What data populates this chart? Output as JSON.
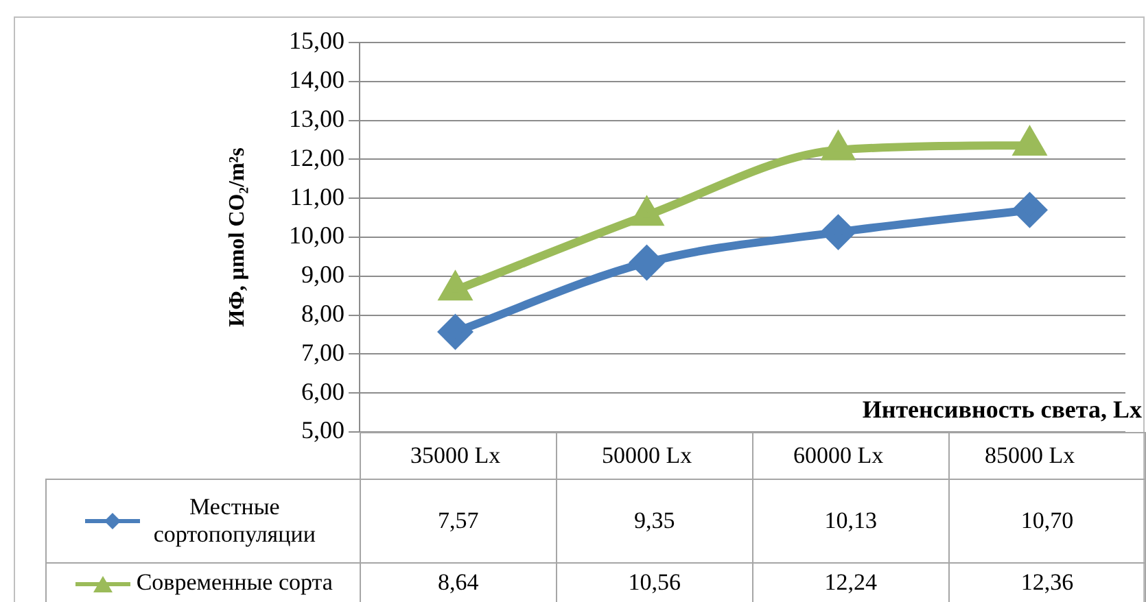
{
  "chart_data": {
    "type": "line",
    "ylabel": "ИФ, μmol CO₂/m²s",
    "xlabel": "Интенсивность света, Lx",
    "categories": [
      "35000 Lx",
      "50000 Lx",
      "60000 Lx",
      "85000 Lx"
    ],
    "series": [
      {
        "name": "Местные сортопопуляции",
        "color": "#4a7ebb",
        "marker": "diamond",
        "values": [
          7.57,
          9.35,
          10.13,
          10.7
        ]
      },
      {
        "name": "Современные сорта",
        "color": "#9bbb59",
        "marker": "triangle",
        "values": [
          8.64,
          10.56,
          12.24,
          12.36
        ]
      }
    ],
    "ylim": [
      5,
      15
    ],
    "yticks": [
      {
        "value": 5,
        "label": "5,00"
      },
      {
        "value": 6,
        "label": "6,00"
      },
      {
        "value": 7,
        "label": "7,00"
      },
      {
        "value": 8,
        "label": "8,00"
      },
      {
        "value": 9,
        "label": "9,00"
      },
      {
        "value": 10,
        "label": "10,00"
      },
      {
        "value": 11,
        "label": "11,00"
      },
      {
        "value": 12,
        "label": "12,00"
      },
      {
        "value": 13,
        "label": "13,00"
      },
      {
        "value": 14,
        "label": "14,00"
      },
      {
        "value": 15,
        "label": "15,00"
      }
    ],
    "value_labels": [
      [
        "7,57",
        "9,35",
        "10,13",
        "10,70"
      ],
      [
        "8,64",
        "10,56",
        "12,24",
        "12,36"
      ]
    ],
    "grid": "y",
    "legend": "bottom"
  }
}
